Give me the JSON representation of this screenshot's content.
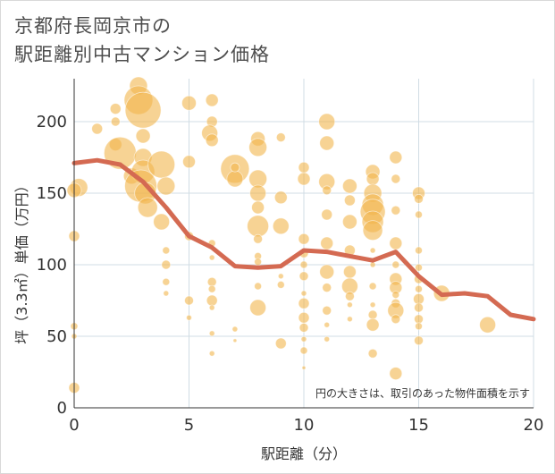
{
  "title_line1": "京都府長岡京市の",
  "title_line2": "駅距離別中古マンション価格",
  "chart_data": {
    "type": "scatter",
    "xlabel": "駅距離（分）",
    "ylabel": "坪（3.3㎡）単価（万円）",
    "xlim": [
      0,
      20
    ],
    "ylim": [
      0,
      230
    ],
    "xticks": [
      0,
      5,
      10,
      15,
      20
    ],
    "yticks": [
      0,
      50,
      100,
      150,
      200
    ],
    "grid": true,
    "annotation": "円の大きさは、取引のあった物件面積を示す",
    "colors": {
      "bubble": "#f2b64d",
      "line": "#d46a52",
      "grid": "#d0dce4",
      "axis": "#333333"
    },
    "series": [
      {
        "type": "line",
        "x": [
          0,
          1,
          2,
          3,
          4,
          5,
          6,
          7,
          8,
          9,
          10,
          11,
          12,
          13,
          14,
          15,
          16,
          17,
          18,
          19,
          20
        ],
        "values": [
          171,
          173,
          170,
          158,
          140,
          120,
          112,
          99,
          98,
          99,
          110,
          109,
          106,
          103,
          109,
          92,
          79,
          80,
          78,
          65,
          62
        ]
      },
      {
        "type": "scatter",
        "points": [
          [
            0.2,
            154,
            10
          ],
          [
            0,
            152,
            8
          ],
          [
            0,
            120,
            6
          ],
          [
            0,
            57,
            4
          ],
          [
            0,
            50,
            3
          ],
          [
            0,
            14,
            6
          ],
          [
            1,
            195,
            6
          ],
          [
            1.8,
            209,
            6
          ],
          [
            1.8,
            200,
            5
          ],
          [
            1.8,
            184,
            7
          ],
          [
            2,
            178,
            18
          ],
          [
            2.5,
            162,
            9
          ],
          [
            2.8,
            225,
            10
          ],
          [
            2.8,
            215,
            16
          ],
          [
            3,
            208,
            20
          ],
          [
            3,
            190,
            8
          ],
          [
            3,
            175,
            10
          ],
          [
            3,
            165,
            13
          ],
          [
            2.9,
            155,
            18
          ],
          [
            3.1,
            150,
            12
          ],
          [
            3.2,
            140,
            11
          ],
          [
            3.8,
            170,
            15
          ],
          [
            4,
            155,
            10
          ],
          [
            3.8,
            130,
            9
          ],
          [
            4,
            110,
            4
          ],
          [
            4,
            100,
            5
          ],
          [
            4,
            88,
            4
          ],
          [
            4,
            80,
            3
          ],
          [
            5,
            213,
            8
          ],
          [
            5,
            172,
            7
          ],
          [
            5,
            120,
            5
          ],
          [
            5,
            75,
            5
          ],
          [
            5,
            63,
            3
          ],
          [
            6,
            215,
            7
          ],
          [
            6,
            200,
            6
          ],
          [
            5.9,
            192,
            9
          ],
          [
            6,
            187,
            7
          ],
          [
            6,
            115,
            4
          ],
          [
            6,
            105,
            3
          ],
          [
            6,
            88,
            5
          ],
          [
            6,
            83,
            4
          ],
          [
            6,
            75,
            6
          ],
          [
            6,
            70,
            3
          ],
          [
            6,
            52,
            3
          ],
          [
            6,
            38,
            3
          ],
          [
            7,
            167,
            16
          ],
          [
            7,
            160,
            9
          ],
          [
            7,
            168,
            5
          ],
          [
            7,
            55,
            3
          ],
          [
            7,
            47,
            2
          ],
          [
            8,
            188,
            8
          ],
          [
            8,
            182,
            10
          ],
          [
            8,
            160,
            10
          ],
          [
            8,
            150,
            9
          ],
          [
            8,
            140,
            7
          ],
          [
            8,
            127,
            12
          ],
          [
            8,
            118,
            5
          ],
          [
            8,
            106,
            4
          ],
          [
            8,
            102,
            4
          ],
          [
            8,
            85,
            4
          ],
          [
            8,
            70,
            9
          ],
          [
            9,
            189,
            5
          ],
          [
            9,
            147,
            7
          ],
          [
            9,
            127,
            9
          ],
          [
            9,
            92,
            3
          ],
          [
            9,
            86,
            4
          ],
          [
            9,
            45,
            6
          ],
          [
            10,
            160,
            7
          ],
          [
            10,
            168,
            6
          ],
          [
            10,
            118,
            6
          ],
          [
            10,
            108,
            5
          ],
          [
            10,
            100,
            4
          ],
          [
            10,
            92,
            5
          ],
          [
            10,
            80,
            3
          ],
          [
            10,
            73,
            6
          ],
          [
            10,
            63,
            6
          ],
          [
            10,
            56,
            5
          ],
          [
            10,
            48,
            3
          ],
          [
            10,
            40,
            4
          ],
          [
            10,
            28,
            2
          ],
          [
            11,
            200,
            9
          ],
          [
            11,
            185,
            8
          ],
          [
            11,
            158,
            9
          ],
          [
            11,
            152,
            5
          ],
          [
            11,
            135,
            6
          ],
          [
            11,
            115,
            7
          ],
          [
            11,
            95,
            8
          ],
          [
            11,
            84,
            5
          ],
          [
            11,
            68,
            5
          ],
          [
            11,
            58,
            3
          ],
          [
            11,
            48,
            3
          ],
          [
            12,
            155,
            8
          ],
          [
            12,
            145,
            6
          ],
          [
            12,
            130,
            8
          ],
          [
            12,
            110,
            6
          ],
          [
            12,
            95,
            7
          ],
          [
            12,
            85,
            9
          ],
          [
            12,
            78,
            5
          ],
          [
            12,
            72,
            3
          ],
          [
            12,
            62,
            3
          ],
          [
            13,
            165,
            8
          ],
          [
            13,
            160,
            7
          ],
          [
            13,
            150,
            10
          ],
          [
            13,
            142,
            12
          ],
          [
            13,
            137,
            14
          ],
          [
            13,
            130,
            12
          ],
          [
            13,
            124,
            11
          ],
          [
            13,
            110,
            3
          ],
          [
            13,
            100,
            3
          ],
          [
            13,
            85,
            4
          ],
          [
            13,
            72,
            3
          ],
          [
            13,
            65,
            5
          ],
          [
            13,
            58,
            7
          ],
          [
            13,
            38,
            5
          ],
          [
            14,
            175,
            7
          ],
          [
            14,
            160,
            5
          ],
          [
            14,
            138,
            5
          ],
          [
            14,
            115,
            7
          ],
          [
            14,
            100,
            4
          ],
          [
            14,
            90,
            7
          ],
          [
            14,
            84,
            7
          ],
          [
            14,
            79,
            4
          ],
          [
            14,
            73,
            5
          ],
          [
            14,
            68,
            9
          ],
          [
            14,
            62,
            5
          ],
          [
            14,
            24,
            7
          ],
          [
            15,
            150,
            7
          ],
          [
            15,
            146,
            5
          ],
          [
            15,
            135,
            4
          ],
          [
            15,
            110,
            4
          ],
          [
            15,
            98,
            4
          ],
          [
            15,
            90,
            5
          ],
          [
            15,
            83,
            4
          ],
          [
            15,
            76,
            6
          ],
          [
            15,
            70,
            5
          ],
          [
            15,
            62,
            5
          ],
          [
            15,
            57,
            4
          ],
          [
            15,
            47,
            5
          ],
          [
            16,
            80,
            9
          ],
          [
            18,
            58,
            9
          ]
        ]
      }
    ]
  }
}
